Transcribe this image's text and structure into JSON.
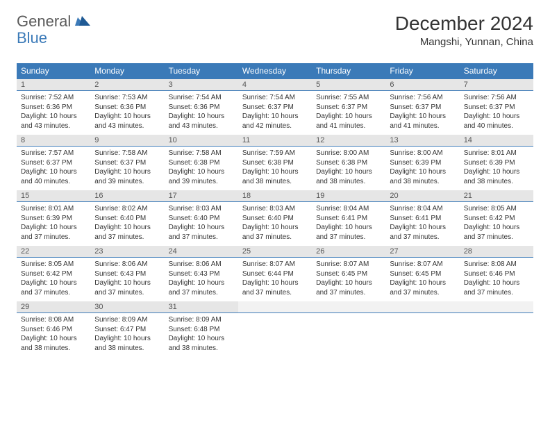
{
  "logo": {
    "part1": "General",
    "part2": "Blue"
  },
  "title": "December 2024",
  "location": "Mangshi, Yunnan, China",
  "day_headers": [
    "Sunday",
    "Monday",
    "Tuesday",
    "Wednesday",
    "Thursday",
    "Friday",
    "Saturday"
  ],
  "colors": {
    "header_bg": "#3b7ab8",
    "header_text": "#ffffff",
    "daynum_bg": "#e6e6e6",
    "daynum_text": "#555555",
    "body_text": "#333333",
    "rule": "#3b7ab8"
  },
  "weeks": [
    [
      {
        "n": "1",
        "sr": "7:52 AM",
        "ss": "6:36 PM",
        "dl": "10 hours and 43 minutes."
      },
      {
        "n": "2",
        "sr": "7:53 AM",
        "ss": "6:36 PM",
        "dl": "10 hours and 43 minutes."
      },
      {
        "n": "3",
        "sr": "7:54 AM",
        "ss": "6:36 PM",
        "dl": "10 hours and 43 minutes."
      },
      {
        "n": "4",
        "sr": "7:54 AM",
        "ss": "6:37 PM",
        "dl": "10 hours and 42 minutes."
      },
      {
        "n": "5",
        "sr": "7:55 AM",
        "ss": "6:37 PM",
        "dl": "10 hours and 41 minutes."
      },
      {
        "n": "6",
        "sr": "7:56 AM",
        "ss": "6:37 PM",
        "dl": "10 hours and 41 minutes."
      },
      {
        "n": "7",
        "sr": "7:56 AM",
        "ss": "6:37 PM",
        "dl": "10 hours and 40 minutes."
      }
    ],
    [
      {
        "n": "8",
        "sr": "7:57 AM",
        "ss": "6:37 PM",
        "dl": "10 hours and 40 minutes."
      },
      {
        "n": "9",
        "sr": "7:58 AM",
        "ss": "6:37 PM",
        "dl": "10 hours and 39 minutes."
      },
      {
        "n": "10",
        "sr": "7:58 AM",
        "ss": "6:38 PM",
        "dl": "10 hours and 39 minutes."
      },
      {
        "n": "11",
        "sr": "7:59 AM",
        "ss": "6:38 PM",
        "dl": "10 hours and 38 minutes."
      },
      {
        "n": "12",
        "sr": "8:00 AM",
        "ss": "6:38 PM",
        "dl": "10 hours and 38 minutes."
      },
      {
        "n": "13",
        "sr": "8:00 AM",
        "ss": "6:39 PM",
        "dl": "10 hours and 38 minutes."
      },
      {
        "n": "14",
        "sr": "8:01 AM",
        "ss": "6:39 PM",
        "dl": "10 hours and 38 minutes."
      }
    ],
    [
      {
        "n": "15",
        "sr": "8:01 AM",
        "ss": "6:39 PM",
        "dl": "10 hours and 37 minutes."
      },
      {
        "n": "16",
        "sr": "8:02 AM",
        "ss": "6:40 PM",
        "dl": "10 hours and 37 minutes."
      },
      {
        "n": "17",
        "sr": "8:03 AM",
        "ss": "6:40 PM",
        "dl": "10 hours and 37 minutes."
      },
      {
        "n": "18",
        "sr": "8:03 AM",
        "ss": "6:40 PM",
        "dl": "10 hours and 37 minutes."
      },
      {
        "n": "19",
        "sr": "8:04 AM",
        "ss": "6:41 PM",
        "dl": "10 hours and 37 minutes."
      },
      {
        "n": "20",
        "sr": "8:04 AM",
        "ss": "6:41 PM",
        "dl": "10 hours and 37 minutes."
      },
      {
        "n": "21",
        "sr": "8:05 AM",
        "ss": "6:42 PM",
        "dl": "10 hours and 37 minutes."
      }
    ],
    [
      {
        "n": "22",
        "sr": "8:05 AM",
        "ss": "6:42 PM",
        "dl": "10 hours and 37 minutes."
      },
      {
        "n": "23",
        "sr": "8:06 AM",
        "ss": "6:43 PM",
        "dl": "10 hours and 37 minutes."
      },
      {
        "n": "24",
        "sr": "8:06 AM",
        "ss": "6:43 PM",
        "dl": "10 hours and 37 minutes."
      },
      {
        "n": "25",
        "sr": "8:07 AM",
        "ss": "6:44 PM",
        "dl": "10 hours and 37 minutes."
      },
      {
        "n": "26",
        "sr": "8:07 AM",
        "ss": "6:45 PM",
        "dl": "10 hours and 37 minutes."
      },
      {
        "n": "27",
        "sr": "8:07 AM",
        "ss": "6:45 PM",
        "dl": "10 hours and 37 minutes."
      },
      {
        "n": "28",
        "sr": "8:08 AM",
        "ss": "6:46 PM",
        "dl": "10 hours and 37 minutes."
      }
    ],
    [
      {
        "n": "29",
        "sr": "8:08 AM",
        "ss": "6:46 PM",
        "dl": "10 hours and 38 minutes."
      },
      {
        "n": "30",
        "sr": "8:09 AM",
        "ss": "6:47 PM",
        "dl": "10 hours and 38 minutes."
      },
      {
        "n": "31",
        "sr": "8:09 AM",
        "ss": "6:48 PM",
        "dl": "10 hours and 38 minutes."
      },
      null,
      null,
      null,
      null
    ]
  ]
}
